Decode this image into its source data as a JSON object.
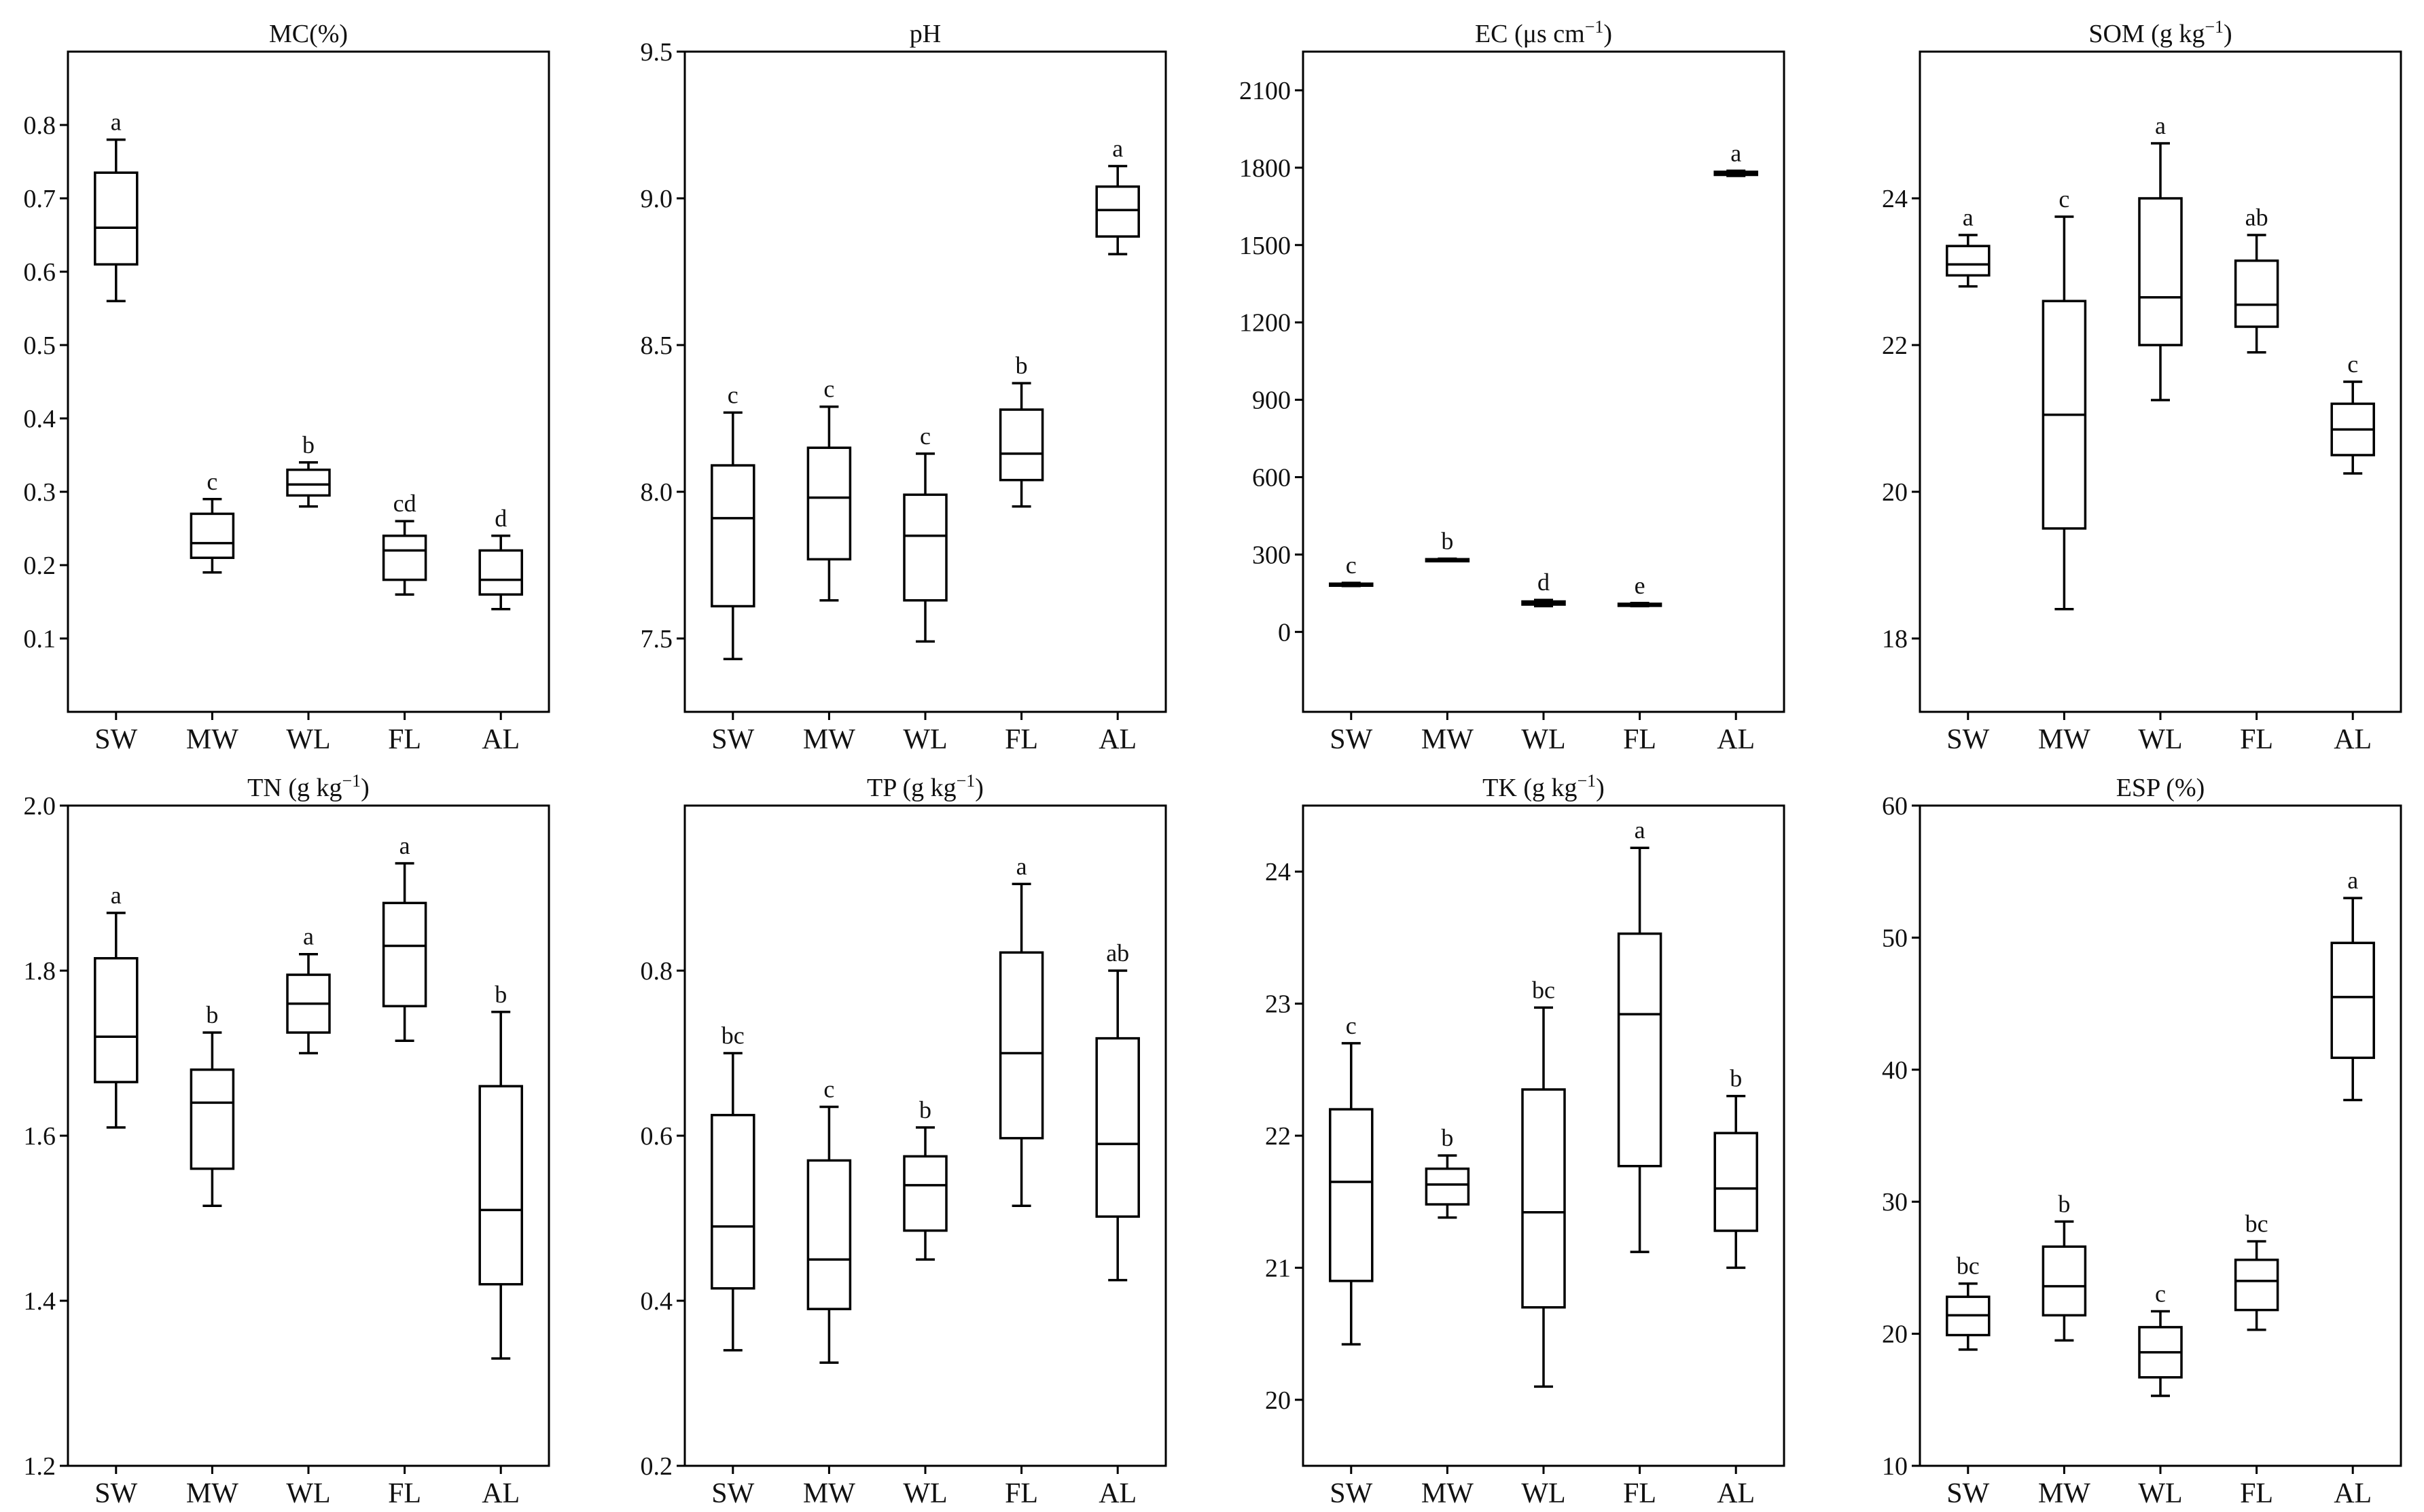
{
  "figure": {
    "style": {
      "axis_color": "#000000",
      "box_fill": "#ffffff",
      "background": "#ffffff"
    }
  },
  "chart_data": [
    {
      "type": "boxplot",
      "title": "MC(%)",
      "title_base": "MC(%)",
      "title_sup": "",
      "title_suffix": "",
      "categories": [
        "SW",
        "MW",
        "WL",
        "FL",
        "AL"
      ],
      "ylim": [
        0.0,
        0.9
      ],
      "yticks": [
        0.1,
        0.2,
        0.3,
        0.4,
        0.5,
        0.6,
        0.7,
        0.8
      ],
      "ytick_labels": [
        "0.1",
        "0.2",
        "0.3",
        "0.4",
        "0.5",
        "0.6",
        "0.7",
        "0.8"
      ],
      "boxes": [
        {
          "category": "SW",
          "min": 0.56,
          "q1": 0.61,
          "median": 0.66,
          "q3": 0.735,
          "max": 0.78,
          "letter": "a"
        },
        {
          "category": "MW",
          "min": 0.19,
          "q1": 0.21,
          "median": 0.23,
          "q3": 0.27,
          "max": 0.29,
          "letter": "c"
        },
        {
          "category": "WL",
          "min": 0.28,
          "q1": 0.295,
          "median": 0.31,
          "q3": 0.33,
          "max": 0.34,
          "letter": "b"
        },
        {
          "category": "FL",
          "min": 0.16,
          "q1": 0.18,
          "median": 0.22,
          "q3": 0.24,
          "max": 0.26,
          "letter": "cd"
        },
        {
          "category": "AL",
          "min": 0.14,
          "q1": 0.16,
          "median": 0.18,
          "q3": 0.22,
          "max": 0.24,
          "letter": "d"
        }
      ]
    },
    {
      "type": "boxplot",
      "title": "pH",
      "title_base": "pH",
      "title_sup": "",
      "title_suffix": "",
      "categories": [
        "SW",
        "MW",
        "WL",
        "FL",
        "AL"
      ],
      "ylim": [
        7.25,
        9.5
      ],
      "yticks": [
        7.5,
        8.0,
        8.5,
        9.0,
        9.5
      ],
      "ytick_labels": [
        "7.5",
        "8.0",
        "8.5",
        "9.0",
        "9.5"
      ],
      "boxes": [
        {
          "category": "SW",
          "min": 7.43,
          "q1": 7.61,
          "median": 7.91,
          "q3": 8.09,
          "max": 8.27,
          "letter": "c"
        },
        {
          "category": "MW",
          "min": 7.63,
          "q1": 7.77,
          "median": 7.98,
          "q3": 8.15,
          "max": 8.29,
          "letter": "c"
        },
        {
          "category": "WL",
          "min": 7.49,
          "q1": 7.63,
          "median": 7.85,
          "q3": 7.99,
          "max": 8.13,
          "letter": "c"
        },
        {
          "category": "FL",
          "min": 7.95,
          "q1": 8.04,
          "median": 8.13,
          "q3": 8.28,
          "max": 8.37,
          "letter": "b"
        },
        {
          "category": "AL",
          "min": 8.81,
          "q1": 8.87,
          "median": 8.96,
          "q3": 9.04,
          "max": 9.11,
          "letter": "a"
        }
      ]
    },
    {
      "type": "boxplot",
      "title": "EC (μs cm−1)",
      "title_base": "EC (μs cm",
      "title_sup": "−1",
      "title_suffix": ")",
      "categories": [
        "SW",
        "MW",
        "WL",
        "FL",
        "AL"
      ],
      "ylim": [
        -310,
        2250
      ],
      "yticks": [
        0,
        300,
        600,
        900,
        1200,
        1500,
        1800,
        2100
      ],
      "ytick_labels": [
        "0",
        "300",
        "600",
        "900",
        "1200",
        "1500",
        "1800",
        "2100"
      ],
      "boxes": [
        {
          "category": "SW",
          "min": 178,
          "q1": 181,
          "median": 184,
          "q3": 187,
          "max": 190,
          "letter": "c"
        },
        {
          "category": "MW",
          "min": 276,
          "q1": 278,
          "median": 280,
          "q3": 282,
          "max": 284,
          "letter": "b"
        },
        {
          "category": "WL",
          "min": 100,
          "q1": 106,
          "median": 112,
          "q3": 118,
          "max": 124,
          "letter": "d"
        },
        {
          "category": "FL",
          "min": 100,
          "q1": 103,
          "median": 106,
          "q3": 109,
          "max": 112,
          "letter": "e"
        },
        {
          "category": "AL",
          "min": 1768,
          "q1": 1772,
          "median": 1778,
          "q3": 1784,
          "max": 1788,
          "letter": "a"
        }
      ]
    },
    {
      "type": "boxplot",
      "title": "SOM (g kg−1)",
      "title_base": "SOM (g kg",
      "title_sup": "−1",
      "title_suffix": ")",
      "categories": [
        "SW",
        "MW",
        "WL",
        "FL",
        "AL"
      ],
      "ylim": [
        17.0,
        26.0
      ],
      "yticks": [
        18,
        20,
        22,
        24
      ],
      "ytick_labels": [
        "18",
        "20",
        "22",
        "24"
      ],
      "boxes": [
        {
          "category": "SW",
          "min": 22.8,
          "q1": 22.95,
          "median": 23.1,
          "q3": 23.35,
          "max": 23.5,
          "letter": "a"
        },
        {
          "category": "MW",
          "min": 18.4,
          "q1": 19.5,
          "median": 21.05,
          "q3": 22.6,
          "max": 23.75,
          "letter": "c"
        },
        {
          "category": "WL",
          "min": 21.25,
          "q1": 22.0,
          "median": 22.65,
          "q3": 24.0,
          "max": 24.75,
          "letter": "a"
        },
        {
          "category": "FL",
          "min": 21.9,
          "q1": 22.25,
          "median": 22.55,
          "q3": 23.15,
          "max": 23.5,
          "letter": "ab"
        },
        {
          "category": "AL",
          "min": 20.25,
          "q1": 20.5,
          "median": 20.85,
          "q3": 21.2,
          "max": 21.5,
          "letter": "c"
        }
      ]
    },
    {
      "type": "boxplot",
      "title": "TN (g kg−1)",
      "title_base": "TN (g kg",
      "title_sup": "−1",
      "title_suffix": ")",
      "categories": [
        "SW",
        "MW",
        "WL",
        "FL",
        "AL"
      ],
      "ylim": [
        1.2,
        2.0
      ],
      "yticks": [
        1.2,
        1.4,
        1.6,
        1.8,
        2.0
      ],
      "ytick_labels": [
        "1.2",
        "1.4",
        "1.6",
        "1.8",
        "2.0"
      ],
      "boxes": [
        {
          "category": "SW",
          "min": 1.61,
          "q1": 1.665,
          "median": 1.72,
          "q3": 1.815,
          "max": 1.87,
          "letter": "a"
        },
        {
          "category": "MW",
          "min": 1.515,
          "q1": 1.56,
          "median": 1.64,
          "q3": 1.68,
          "max": 1.725,
          "letter": "b"
        },
        {
          "category": "WL",
          "min": 1.7,
          "q1": 1.725,
          "median": 1.76,
          "q3": 1.795,
          "max": 1.82,
          "letter": "a"
        },
        {
          "category": "FL",
          "min": 1.715,
          "q1": 1.757,
          "median": 1.83,
          "q3": 1.882,
          "max": 1.93,
          "letter": "a"
        },
        {
          "category": "AL",
          "min": 1.33,
          "q1": 1.42,
          "median": 1.51,
          "q3": 1.66,
          "max": 1.75,
          "letter": "b"
        }
      ]
    },
    {
      "type": "boxplot",
      "title": "TP (g kg−1)",
      "title_base": "TP (g kg",
      "title_sup": "−1",
      "title_suffix": ")",
      "categories": [
        "SW",
        "MW",
        "WL",
        "FL",
        "AL"
      ],
      "ylim": [
        0.2,
        1.0
      ],
      "yticks": [
        0.2,
        0.4,
        0.6,
        0.8
      ],
      "ytick_labels": [
        "0.2",
        "0.4",
        "0.6",
        "0.8"
      ],
      "boxes": [
        {
          "category": "SW",
          "min": 0.34,
          "q1": 0.415,
          "median": 0.49,
          "q3": 0.625,
          "max": 0.7,
          "letter": "bc"
        },
        {
          "category": "MW",
          "min": 0.325,
          "q1": 0.39,
          "median": 0.45,
          "q3": 0.57,
          "max": 0.635,
          "letter": "c"
        },
        {
          "category": "WL",
          "min": 0.45,
          "q1": 0.485,
          "median": 0.54,
          "q3": 0.575,
          "max": 0.61,
          "letter": "b"
        },
        {
          "category": "FL",
          "min": 0.515,
          "q1": 0.597,
          "median": 0.7,
          "q3": 0.822,
          "max": 0.905,
          "letter": "a"
        },
        {
          "category": "AL",
          "min": 0.425,
          "q1": 0.502,
          "median": 0.59,
          "q3": 0.718,
          "max": 0.8,
          "letter": "ab"
        }
      ]
    },
    {
      "type": "boxplot",
      "title": "TK (g kg−1)",
      "title_base": "TK (g kg",
      "title_sup": "−1",
      "title_suffix": ")",
      "categories": [
        "SW",
        "MW",
        "WL",
        "FL",
        "AL"
      ],
      "ylim": [
        19.5,
        24.5
      ],
      "yticks": [
        20,
        21,
        22,
        23,
        24
      ],
      "ytick_labels": [
        "20",
        "21",
        "22",
        "23",
        "24"
      ],
      "boxes": [
        {
          "category": "SW",
          "min": 20.42,
          "q1": 20.9,
          "median": 21.65,
          "q3": 22.2,
          "max": 22.7,
          "letter": "c"
        },
        {
          "category": "MW",
          "min": 21.38,
          "q1": 21.48,
          "median": 21.63,
          "q3": 21.75,
          "max": 21.85,
          "letter": "b"
        },
        {
          "category": "WL",
          "min": 20.1,
          "q1": 20.7,
          "median": 21.42,
          "q3": 22.35,
          "max": 22.97,
          "letter": "bc"
        },
        {
          "category": "FL",
          "min": 21.12,
          "q1": 21.77,
          "median": 22.92,
          "q3": 23.53,
          "max": 24.18,
          "letter": "a"
        },
        {
          "category": "AL",
          "min": 21.0,
          "q1": 21.28,
          "median": 21.6,
          "q3": 22.02,
          "max": 22.3,
          "letter": "b"
        }
      ]
    },
    {
      "type": "boxplot",
      "title": "ESP (%)",
      "title_base": "ESP (%)",
      "title_sup": "",
      "title_suffix": "",
      "categories": [
        "SW",
        "MW",
        "WL",
        "FL",
        "AL"
      ],
      "ylim": [
        10,
        60
      ],
      "yticks": [
        10,
        20,
        30,
        40,
        50,
        60
      ],
      "ytick_labels": [
        "10",
        "20",
        "30",
        "40",
        "50",
        "60"
      ],
      "boxes": [
        {
          "category": "SW",
          "min": 18.8,
          "q1": 19.9,
          "median": 21.4,
          "q3": 22.8,
          "max": 23.8,
          "letter": "bc"
        },
        {
          "category": "MW",
          "min": 19.5,
          "q1": 21.4,
          "median": 23.6,
          "q3": 26.6,
          "max": 28.5,
          "letter": "b"
        },
        {
          "category": "WL",
          "min": 15.3,
          "q1": 16.7,
          "median": 18.6,
          "q3": 20.5,
          "max": 21.7,
          "letter": "c"
        },
        {
          "category": "FL",
          "min": 20.3,
          "q1": 21.8,
          "median": 24.0,
          "q3": 25.6,
          "max": 27.0,
          "letter": "bc"
        },
        {
          "category": "AL",
          "min": 37.7,
          "q1": 40.9,
          "median": 45.5,
          "q3": 49.6,
          "max": 53.0,
          "letter": "a"
        }
      ]
    }
  ]
}
